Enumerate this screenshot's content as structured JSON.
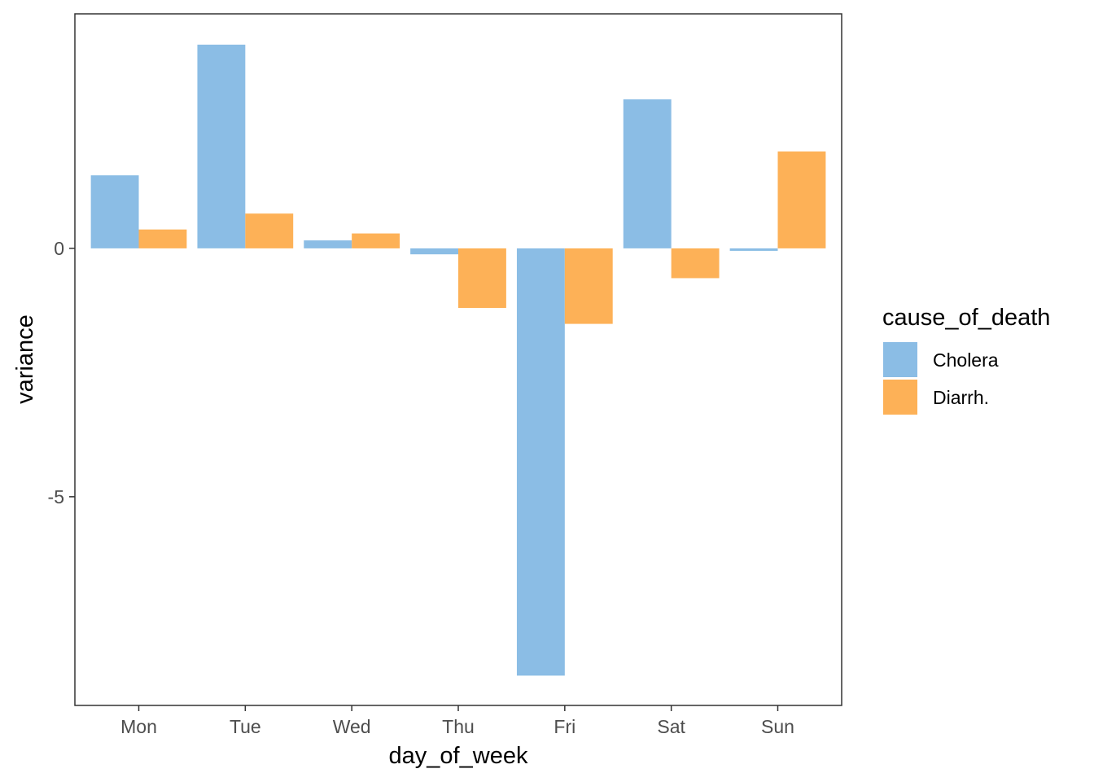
{
  "chart_data": {
    "type": "bar",
    "title": "",
    "xlabel": "day_of_week",
    "ylabel": "variance",
    "categories": [
      "Mon",
      "Tue",
      "Wed",
      "Thu",
      "Fri",
      "Sat",
      "Sun"
    ],
    "series": [
      {
        "name": "Cholera",
        "color": "#8BBDE5",
        "values": [
          1.47,
          4.1,
          0.16,
          -0.12,
          -8.6,
          3.0,
          -0.05
        ]
      },
      {
        "name": "Diarrh.",
        "color": "#FDB157",
        "values": [
          0.38,
          0.7,
          0.3,
          -1.2,
          -1.52,
          -0.6,
          1.95
        ]
      }
    ],
    "yticks": [
      0,
      -5
    ],
    "ylim": [
      -9.2,
      4.72
    ],
    "grid": false,
    "legend": {
      "title": "cause_of_death",
      "placement": "right"
    }
  }
}
